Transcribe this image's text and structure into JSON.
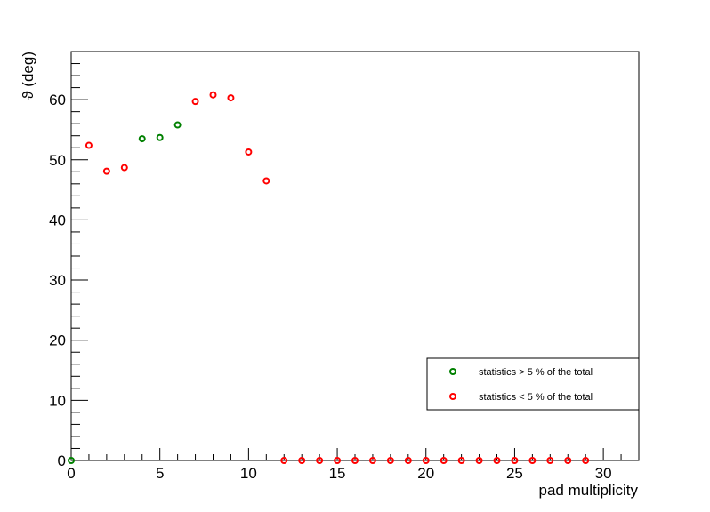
{
  "chart_data": {
    "type": "scatter",
    "title": "",
    "xlabel": "pad multiplicity",
    "ylabel": "ϑ (deg)",
    "xlim": [
      0,
      32
    ],
    "ylim": [
      0,
      68
    ],
    "x_ticks": [
      0,
      5,
      10,
      15,
      20,
      25,
      30
    ],
    "y_ticks": [
      0,
      10,
      20,
      30,
      40,
      50,
      60
    ],
    "grid": false,
    "legend_position": "bottom-right",
    "series": [
      {
        "name": "statistics > 5 % of the total",
        "color": "#008000",
        "x": [
          0,
          4,
          5,
          6
        ],
        "y": [
          0,
          53.5,
          53.7,
          55.8
        ]
      },
      {
        "name": "statistics < 5 % of the total",
        "color": "#ff0000",
        "x": [
          1,
          2,
          3,
          7,
          8,
          9,
          10,
          11,
          12,
          13,
          14,
          15,
          16,
          17,
          18,
          19,
          20,
          21,
          22,
          23,
          24,
          25,
          26,
          27,
          28,
          29
        ],
        "y": [
          52.4,
          48.1,
          48.7,
          59.7,
          60.8,
          60.3,
          51.3,
          46.5,
          0,
          0,
          0,
          0,
          0,
          0,
          0,
          0,
          0,
          0,
          0,
          0,
          0,
          0,
          0,
          0,
          0,
          0
        ]
      }
    ]
  }
}
